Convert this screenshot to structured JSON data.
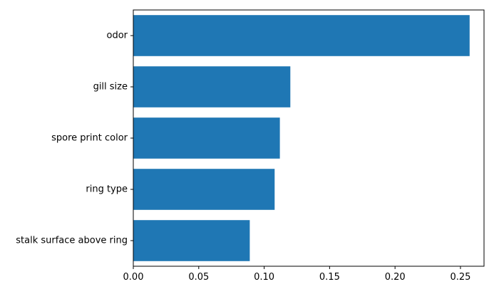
{
  "chart_data": {
    "type": "bar",
    "orientation": "horizontal",
    "categories": [
      "odor",
      "gill size",
      "spore print color",
      "ring type",
      "stalk surface above ring"
    ],
    "values": [
      0.257,
      0.12,
      0.112,
      0.108,
      0.089
    ],
    "xlim": [
      0,
      0.268
    ],
    "xticks": [
      0.0,
      0.05,
      0.1,
      0.15,
      0.2,
      0.25
    ],
    "xtick_labels": [
      "0.00",
      "0.05",
      "0.10",
      "0.15",
      "0.20",
      "0.25"
    ],
    "title": "",
    "xlabel": "",
    "ylabel": "",
    "grid": false,
    "bar_color": "#1f77b4",
    "axis_color": "#000000"
  }
}
